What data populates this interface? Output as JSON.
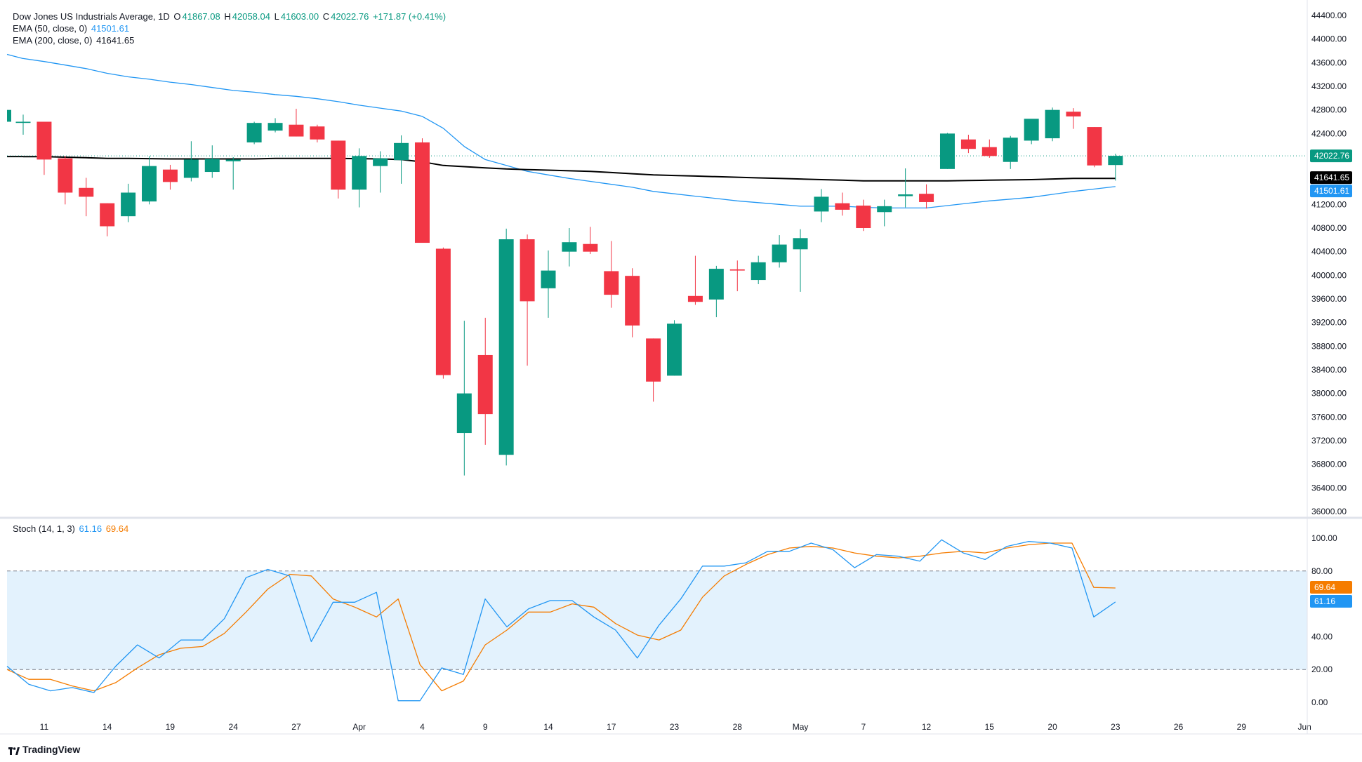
{
  "main_legend": {
    "title": "Dow Jones US Industrials Average, 1D",
    "o_label": "O",
    "o_value": "41867.08",
    "h_label": "H",
    "h_value": "42058.04",
    "l_label": "L",
    "l_value": "41603.00",
    "c_label": "C",
    "c_value": "42022.76",
    "change": "+171.87 (+0.41%)",
    "ema50_label": "EMA (50, close, 0)",
    "ema50_value": "41501.61",
    "ema200_label": "EMA (200, close, 0)",
    "ema200_value": "41641.65"
  },
  "stoch_legend": {
    "label": "Stoch (14, 1, 3)",
    "k_value": "61.16",
    "d_value": "69.64"
  },
  "price_tags": {
    "close": "42022.76",
    "ema200": "41641.65",
    "ema50": "41501.61",
    "stoch_d": "69.64",
    "stoch_k": "61.16"
  },
  "branding": {
    "logo_text": "TradingView"
  },
  "colors": {
    "up": "#089981",
    "down": "#f23645",
    "ema50": "#2196f3",
    "ema200": "#000000",
    "stoch_k": "#2196f3",
    "stoch_d": "#f57c00",
    "band_fill": "#e3f2fd"
  },
  "chart_data": [
    {
      "type": "candlestick",
      "title": "Dow Jones US Industrials Average, 1D",
      "ylim": [
        35800,
        44600
      ],
      "y_ticks": [
        "44400.00",
        "44000.00",
        "43600.00",
        "43200.00",
        "42800.00",
        "42400.00",
        "42000.00",
        "41600.00",
        "41200.00",
        "40800.00",
        "40400.00",
        "40000.00",
        "39600.00",
        "39200.00",
        "38800.00",
        "38400.00",
        "38000.00",
        "37600.00",
        "37200.00",
        "36800.00",
        "36400.00",
        "36000.00"
      ],
      "x_ticks": [
        {
          "label": "11",
          "index": 1
        },
        {
          "label": "14",
          "index": 4
        },
        {
          "label": "19",
          "index": 7
        },
        {
          "label": "24",
          "index": 10
        },
        {
          "label": "27",
          "index": 13
        },
        {
          "label": "Apr",
          "index": 16
        },
        {
          "label": "4",
          "index": 19
        },
        {
          "label": "9",
          "index": 22
        },
        {
          "label": "14",
          "index": 25
        },
        {
          "label": "17",
          "index": 28
        },
        {
          "label": "23",
          "index": 31
        },
        {
          "label": "28",
          "index": 34
        },
        {
          "label": "May",
          "index": 37
        },
        {
          "label": "7",
          "index": 40
        },
        {
          "label": "12",
          "index": 43
        },
        {
          "label": "15",
          "index": 46
        },
        {
          "label": "20",
          "index": 49
        },
        {
          "label": "23",
          "index": 52
        },
        {
          "label": "26",
          "index": 55
        },
        {
          "label": "29",
          "index": 58
        },
        {
          "label": "Jun",
          "index": 61
        }
      ],
      "candles": [
        {
          "o": 42580,
          "h": 42720,
          "l": 42380,
          "c": 42600
        },
        {
          "o": 42600,
          "h": 42600,
          "l": 41700,
          "c": 41960
        },
        {
          "o": 41980,
          "h": 42020,
          "l": 41200,
          "c": 41400
        },
        {
          "o": 41480,
          "h": 41650,
          "l": 41000,
          "c": 41330
        },
        {
          "o": 41220,
          "h": 41220,
          "l": 40660,
          "c": 40830
        },
        {
          "o": 41000,
          "h": 41550,
          "l": 40900,
          "c": 41400
        },
        {
          "o": 41250,
          "h": 42020,
          "l": 41200,
          "c": 41850
        },
        {
          "o": 41790,
          "h": 41870,
          "l": 41450,
          "c": 41580
        },
        {
          "o": 41650,
          "h": 42270,
          "l": 41590,
          "c": 41960
        },
        {
          "o": 41750,
          "h": 42200,
          "l": 41650,
          "c": 41970
        },
        {
          "o": 41930,
          "h": 42000,
          "l": 41450,
          "c": 41960
        },
        {
          "o": 42250,
          "h": 42600,
          "l": 42220,
          "c": 42580
        },
        {
          "o": 42450,
          "h": 42660,
          "l": 42420,
          "c": 42580
        },
        {
          "o": 42550,
          "h": 42820,
          "l": 42350,
          "c": 42350
        },
        {
          "o": 42520,
          "h": 42550,
          "l": 42250,
          "c": 42300
        },
        {
          "o": 42280,
          "h": 42280,
          "l": 41300,
          "c": 41450
        },
        {
          "o": 41450,
          "h": 42150,
          "l": 41150,
          "c": 42020
        },
        {
          "o": 41850,
          "h": 42100,
          "l": 41400,
          "c": 41980
        },
        {
          "o": 41950,
          "h": 42370,
          "l": 41550,
          "c": 42240
        },
        {
          "o": 42250,
          "h": 42320,
          "l": 40550,
          "c": 40550
        },
        {
          "o": 40450,
          "h": 40470,
          "l": 38250,
          "c": 38310
        },
        {
          "o": 37330,
          "h": 39230,
          "l": 36610,
          "c": 38000
        },
        {
          "o": 38650,
          "h": 39280,
          "l": 37130,
          "c": 37650
        },
        {
          "o": 36960,
          "h": 40790,
          "l": 36780,
          "c": 40610
        },
        {
          "o": 40610,
          "h": 40690,
          "l": 38470,
          "c": 39560
        },
        {
          "o": 39780,
          "h": 40420,
          "l": 39280,
          "c": 40080
        },
        {
          "o": 40400,
          "h": 40800,
          "l": 40150,
          "c": 40560
        },
        {
          "o": 40530,
          "h": 40820,
          "l": 40360,
          "c": 40400
        },
        {
          "o": 40070,
          "h": 40580,
          "l": 39450,
          "c": 39670
        },
        {
          "o": 39990,
          "h": 40120,
          "l": 38950,
          "c": 39150
        },
        {
          "o": 38930,
          "h": 38930,
          "l": 37860,
          "c": 38200
        },
        {
          "o": 38300,
          "h": 39240,
          "l": 38300,
          "c": 39180
        },
        {
          "o": 39650,
          "h": 40330,
          "l": 39500,
          "c": 39550
        },
        {
          "o": 39590,
          "h": 40160,
          "l": 39290,
          "c": 40110
        },
        {
          "o": 40100,
          "h": 40250,
          "l": 39730,
          "c": 40080
        },
        {
          "o": 39920,
          "h": 40330,
          "l": 39850,
          "c": 40220
        },
        {
          "o": 40220,
          "h": 40680,
          "l": 40130,
          "c": 40520
        },
        {
          "o": 40440,
          "h": 40780,
          "l": 39720,
          "c": 40630
        },
        {
          "o": 41080,
          "h": 41460,
          "l": 40900,
          "c": 41330
        },
        {
          "o": 41220,
          "h": 41400,
          "l": 41010,
          "c": 41110
        },
        {
          "o": 41180,
          "h": 41280,
          "l": 40750,
          "c": 40800
        },
        {
          "o": 41070,
          "h": 41280,
          "l": 40830,
          "c": 41170
        },
        {
          "o": 41340,
          "h": 41810,
          "l": 41150,
          "c": 41370
        },
        {
          "o": 41380,
          "h": 41540,
          "l": 41130,
          "c": 41240
        },
        {
          "o": 41800,
          "h": 42410,
          "l": 41800,
          "c": 42400
        },
        {
          "o": 42300,
          "h": 42380,
          "l": 42070,
          "c": 42140
        },
        {
          "o": 42170,
          "h": 42300,
          "l": 41990,
          "c": 42020
        },
        {
          "o": 41920,
          "h": 42360,
          "l": 41800,
          "c": 42330
        },
        {
          "o": 42280,
          "h": 42640,
          "l": 42220,
          "c": 42650
        },
        {
          "o": 42320,
          "h": 42840,
          "l": 42270,
          "c": 42800
        },
        {
          "o": 42770,
          "h": 42830,
          "l": 42480,
          "c": 42690
        },
        {
          "o": 42510,
          "h": 42510,
          "l": 41830,
          "c": 41860
        },
        {
          "o": 41867.08,
          "h": 42058.04,
          "l": 41603.0,
          "c": 42022.76
        }
      ],
      "series": [
        {
          "name": "EMA (50, close, 0)",
          "values": [
            43670,
            43620,
            43560,
            43500,
            43420,
            43360,
            43320,
            43270,
            43230,
            43180,
            43130,
            43100,
            43060,
            43030,
            42990,
            42940,
            42880,
            42830,
            42780,
            42690,
            42490,
            42180,
            41960,
            41860,
            41760,
            41700,
            41640,
            41590,
            41540,
            41490,
            41420,
            41380,
            41340,
            41300,
            41260,
            41230,
            41200,
            41170,
            41170,
            41170,
            41150,
            41140,
            41140,
            41140,
            41180,
            41220,
            41260,
            41290,
            41320,
            41370,
            41420,
            41460,
            41501.61
          ]
        },
        {
          "name": "EMA (200, close, 0)",
          "values": [
            42010,
            42010,
            42000,
            41990,
            41980,
            41980,
            41975,
            41970,
            41970,
            41970,
            41970,
            41970,
            41980,
            41980,
            41980,
            41980,
            41975,
            41970,
            41960,
            41920,
            41860,
            41840,
            41820,
            41800,
            41790,
            41780,
            41770,
            41760,
            41740,
            41720,
            41700,
            41690,
            41680,
            41670,
            41660,
            41650,
            41640,
            41630,
            41620,
            41610,
            41600,
            41600,
            41600,
            41600,
            41600,
            41605,
            41610,
            41615,
            41620,
            41630,
            41640,
            41640,
            41641.65
          ]
        }
      ]
    },
    {
      "type": "line",
      "title": "Stoch (14, 1, 3)",
      "ylim": [
        -4,
        108
      ],
      "y_ticks": [
        "100.00",
        "80.00",
        "60.00",
        "40.00",
        "20.00",
        "0.00"
      ],
      "bands": [
        20,
        80
      ],
      "series": [
        {
          "name": "%K",
          "values": [
            22,
            11,
            7,
            9,
            6,
            22,
            35,
            27,
            38,
            38,
            51,
            76,
            81,
            77,
            37,
            61,
            61,
            67,
            1,
            1,
            21,
            17,
            63,
            46,
            57,
            62,
            62,
            52,
            44,
            27,
            47,
            63,
            83,
            83,
            85,
            92,
            92,
            97,
            93,
            82,
            90,
            89,
            86,
            99,
            91,
            87,
            95,
            98,
            97,
            94,
            52,
            61.16
          ]
        },
        {
          "name": "%D",
          "values": [
            20,
            14,
            14,
            10,
            7,
            12,
            21,
            29,
            33,
            34,
            42,
            55,
            69,
            78,
            77,
            63,
            58,
            52,
            63,
            23,
            7,
            13,
            35,
            44,
            55,
            55,
            60,
            58,
            48,
            41,
            38,
            44,
            64,
            77,
            84,
            90,
            94,
            95,
            94,
            91,
            89,
            88,
            89,
            91,
            92,
            91,
            94,
            96,
            97,
            97,
            70,
            69.64
          ]
        }
      ]
    }
  ]
}
